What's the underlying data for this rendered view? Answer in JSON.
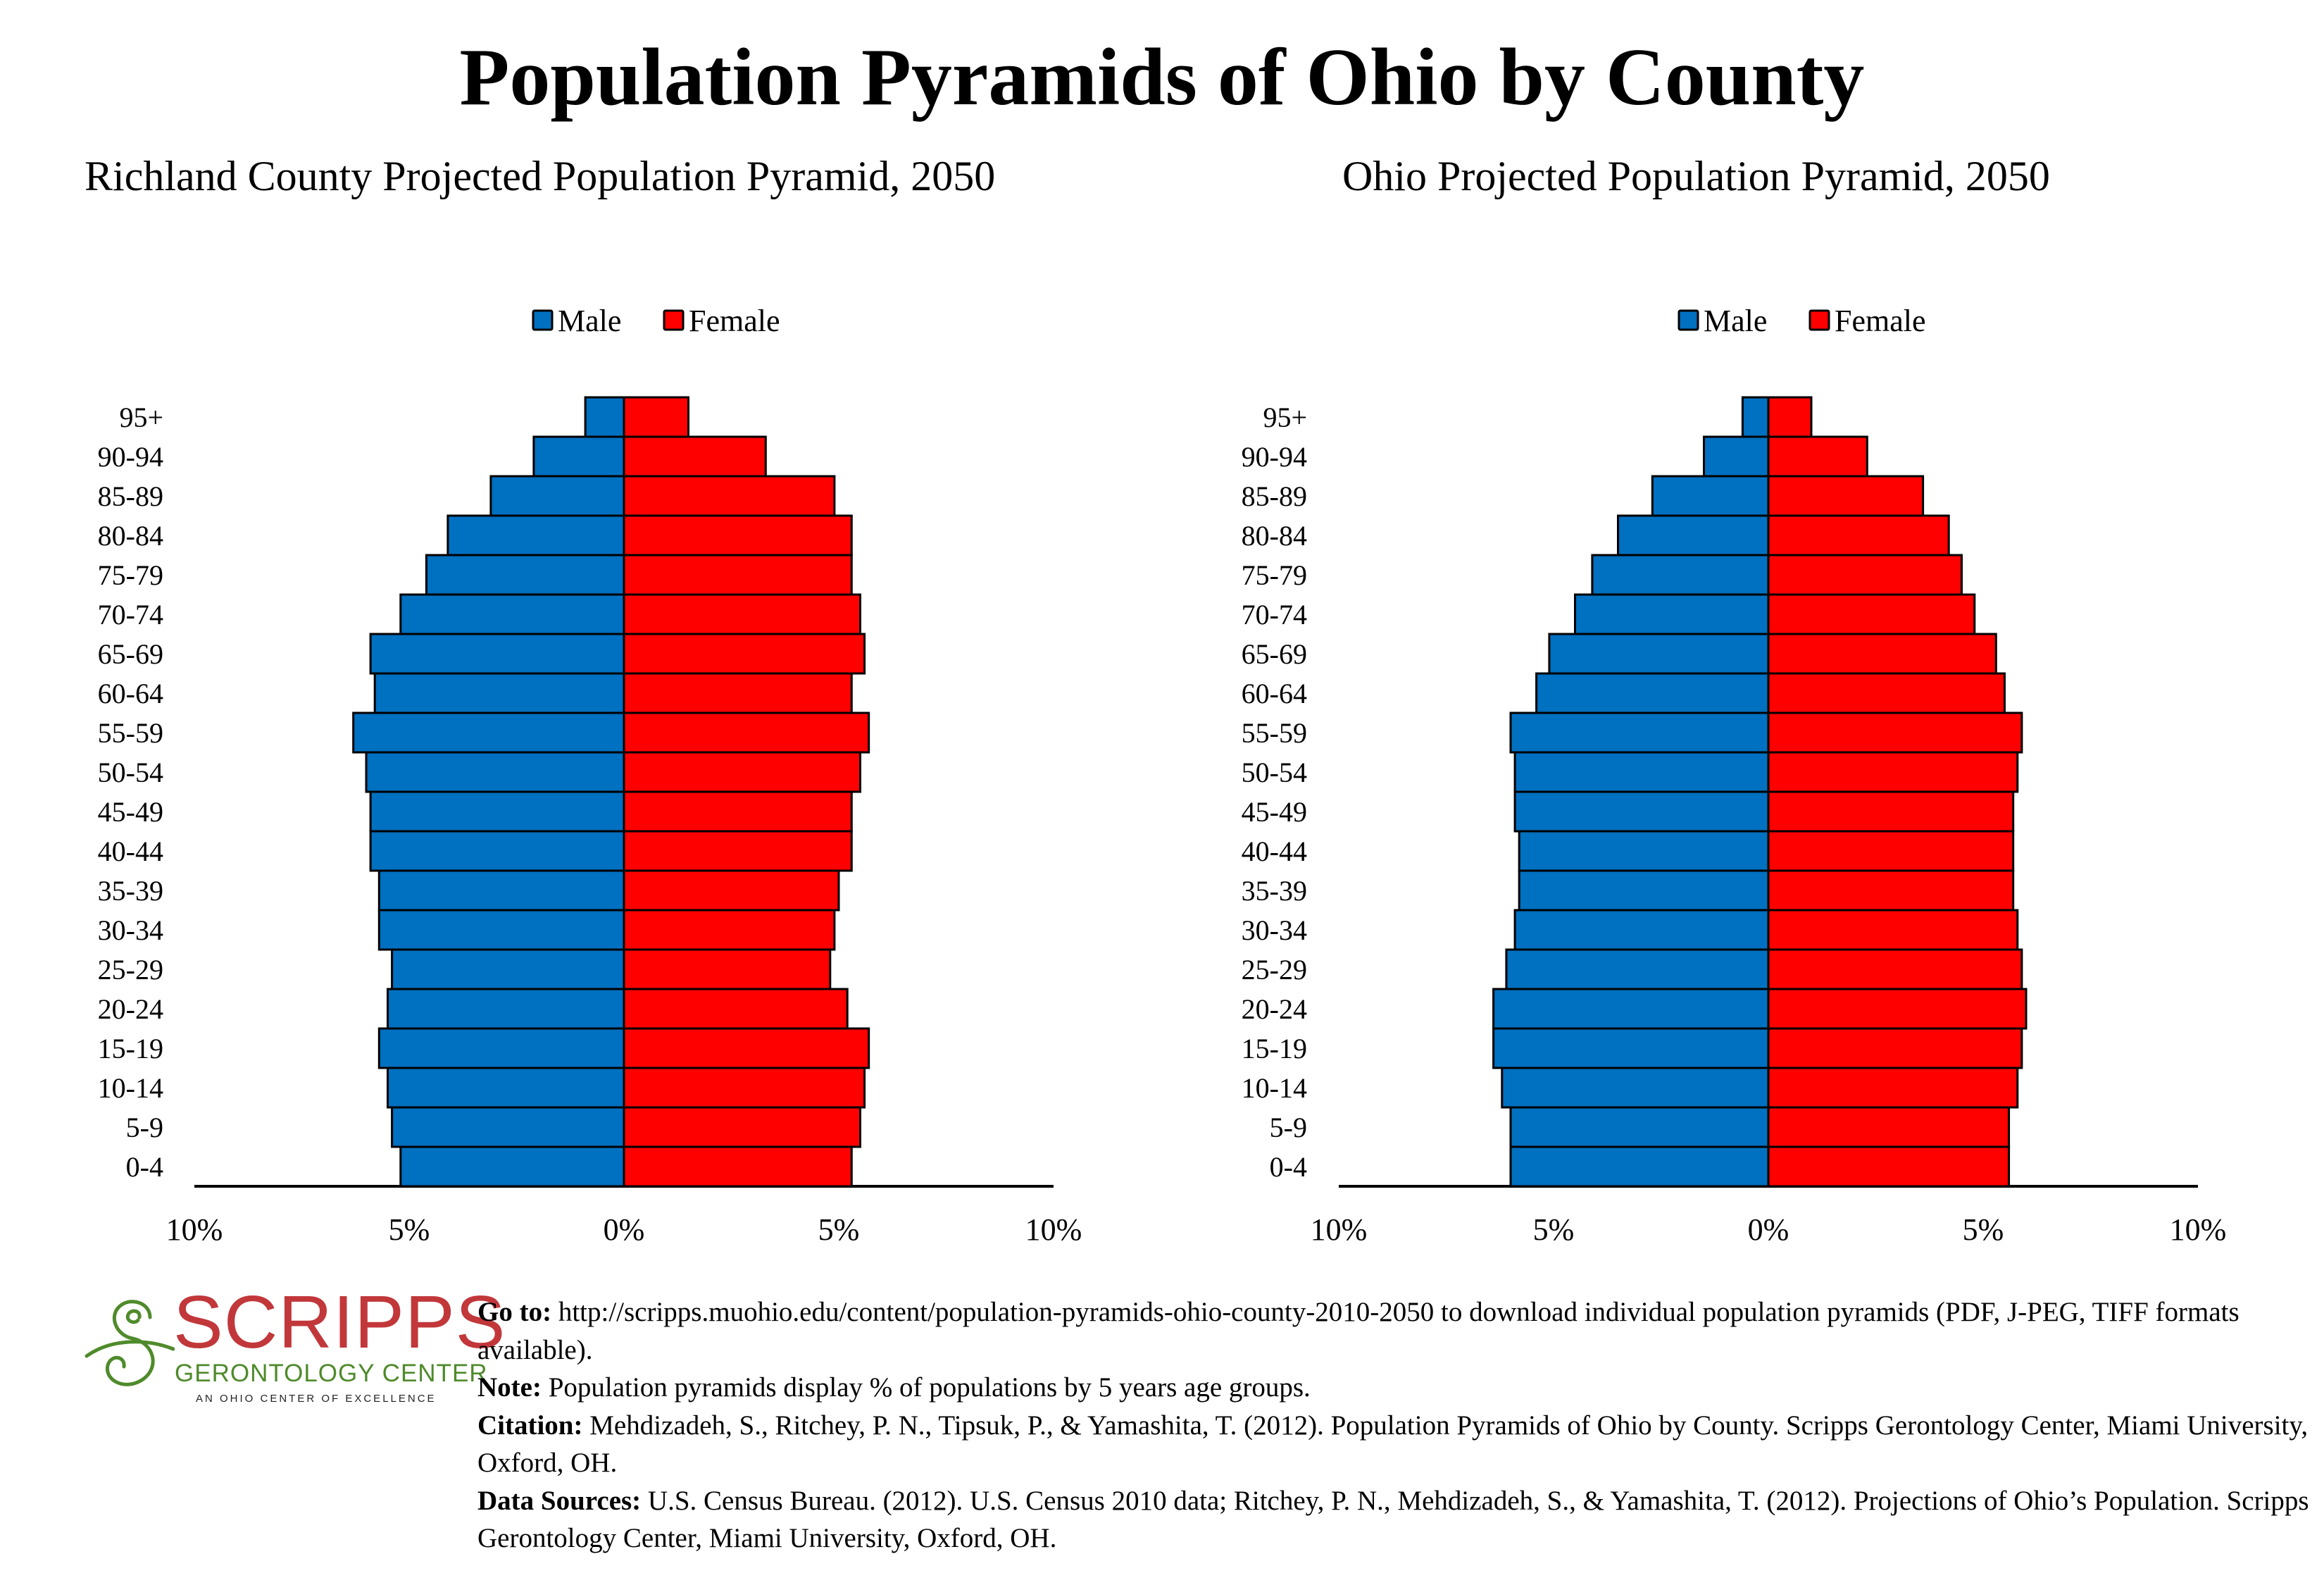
{
  "title": "Population Pyramids of Ohio by County",
  "colors": {
    "male": "#0070c0",
    "female": "#ff0000",
    "outline": "#000000"
  },
  "chart_data": [
    {
      "type": "bar",
      "orientation": "horizontal-pyramid",
      "title": "Richland County Projected Population Pyramid, 2050",
      "legend": [
        "Male",
        "Female"
      ],
      "legend_position": "top-center",
      "xlabel": "",
      "ylabel": "",
      "xlim": [
        -10,
        10
      ],
      "x_ticks": [
        "10%",
        "5%",
        "0%",
        "5%",
        "10%"
      ],
      "x_tick_values": [
        -10,
        -5,
        0,
        5,
        10
      ],
      "grid": false,
      "categories": [
        "95+",
        "90-94",
        "85-89",
        "80-84",
        "75-79",
        "70-74",
        "65-69",
        "60-64",
        "55-59",
        "50-54",
        "45-49",
        "40-44",
        "35-39",
        "30-34",
        "25-29",
        "20-24",
        "15-19",
        "10-14",
        "5-9",
        "0-4"
      ],
      "series": [
        {
          "name": "Male",
          "values": [
            0.9,
            2.1,
            3.1,
            4.1,
            4.6,
            5.2,
            5.9,
            5.8,
            6.3,
            6.0,
            5.9,
            5.9,
            5.7,
            5.7,
            5.4,
            5.5,
            5.7,
            5.5,
            5.4,
            5.2
          ]
        },
        {
          "name": "Female",
          "values": [
            1.5,
            3.3,
            4.9,
            5.3,
            5.3,
            5.5,
            5.6,
            5.3,
            5.7,
            5.5,
            5.3,
            5.3,
            5.0,
            4.9,
            4.8,
            5.2,
            5.7,
            5.6,
            5.5,
            5.3
          ]
        }
      ]
    },
    {
      "type": "bar",
      "orientation": "horizontal-pyramid",
      "title": "Ohio Projected Population Pyramid, 2050",
      "legend": [
        "Male",
        "Female"
      ],
      "legend_position": "top-center",
      "xlabel": "",
      "ylabel": "",
      "xlim": [
        -10,
        10
      ],
      "x_ticks": [
        "10%",
        "5%",
        "0%",
        "5%",
        "10%"
      ],
      "x_tick_values": [
        -10,
        -5,
        0,
        5,
        10
      ],
      "grid": false,
      "categories": [
        "95+",
        "90-94",
        "85-89",
        "80-84",
        "75-79",
        "70-74",
        "65-69",
        "60-64",
        "55-59",
        "50-54",
        "45-49",
        "40-44",
        "35-39",
        "30-34",
        "25-29",
        "20-24",
        "15-19",
        "10-14",
        "5-9",
        "0-4"
      ],
      "series": [
        {
          "name": "Male",
          "values": [
            0.6,
            1.5,
            2.7,
            3.5,
            4.1,
            4.5,
            5.1,
            5.4,
            6.0,
            5.9,
            5.9,
            5.8,
            5.8,
            5.9,
            6.1,
            6.4,
            6.4,
            6.2,
            6.0,
            6.0
          ]
        },
        {
          "name": "Female",
          "values": [
            1.0,
            2.3,
            3.6,
            4.2,
            4.5,
            4.8,
            5.3,
            5.5,
            5.9,
            5.8,
            5.7,
            5.7,
            5.7,
            5.8,
            5.9,
            6.0,
            5.9,
            5.8,
            5.6,
            5.6
          ]
        }
      ]
    }
  ],
  "logo": {
    "wordmark": "SCRIPPS",
    "subtitle": "GERONTOLOGY CENTER",
    "tagline": "AN OHIO CENTER OF EXCELLENCE",
    "icon": "swirl-s-logo-icon"
  },
  "footer": {
    "goto_label": "Go to:",
    "goto_text": " http://scripps.muohio.edu/content/population-pyramids-ohio-county-2010-2050 to download individual population pyramids (PDF, J-PEG, TIFF formats available).",
    "note_label": "Note:",
    "note_text": " Population pyramids display % of populations by 5 years age groups.",
    "citation_label": "Citation:",
    "citation_text": " Mehdizadeh, S., Ritchey, P. N., Tipsuk, P., & Yamashita, T. (2012). Population Pyramids of Ohio by County. Scripps Gerontology Center, Miami University, Oxford, OH.",
    "sources_label": "Data Sources:",
    "sources_text": " U.S. Census Bureau. (2012). U.S. Census 2010 data; Ritchey, P. N., Mehdizadeh, S., & Yamashita, T. (2012). Projections of Ohio’s Population. Scripps Gerontology Center, Miami University, Oxford, OH."
  }
}
